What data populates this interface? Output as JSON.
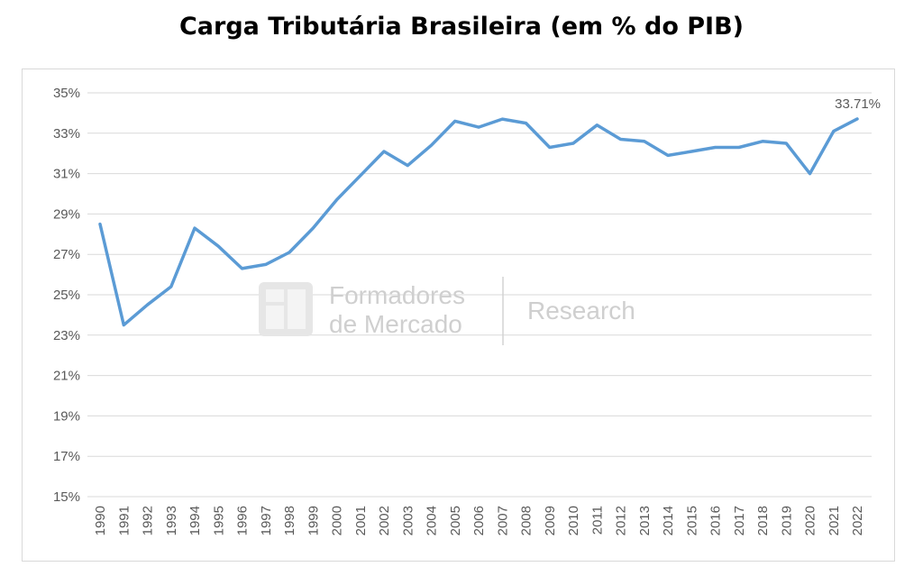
{
  "chart_data": {
    "type": "line",
    "title": "Carga Tributária Brasileira (em % do PIB)",
    "xlabel": "",
    "ylabel": "",
    "x": [
      "1990",
      "1991",
      "1992",
      "1993",
      "1994",
      "1995",
      "1996",
      "1997",
      "1998",
      "1999",
      "2000",
      "2001",
      "2002",
      "2003",
      "2004",
      "2005",
      "2006",
      "2007",
      "2008",
      "2009",
      "2010",
      "2011",
      "2012",
      "2013",
      "2014",
      "2015",
      "2016",
      "2017",
      "2018",
      "2019",
      "2020",
      "2021",
      "2022"
    ],
    "series": [
      {
        "name": "",
        "values": [
          28.5,
          23.5,
          24.5,
          25.4,
          28.3,
          27.4,
          26.3,
          26.5,
          27.1,
          28.3,
          29.7,
          30.9,
          32.1,
          31.4,
          32.4,
          33.6,
          33.3,
          33.7,
          33.5,
          32.3,
          32.5,
          33.4,
          32.7,
          32.6,
          31.9,
          32.1,
          32.3,
          32.3,
          32.6,
          32.5,
          31.0,
          33.1,
          33.71
        ],
        "color": "#5b9bd5"
      }
    ],
    "ylim": [
      15,
      35
    ],
    "yticks": [
      15,
      17,
      19,
      21,
      23,
      25,
      27,
      29,
      31,
      33,
      35
    ],
    "ytick_labels": [
      "15%",
      "17%",
      "19%",
      "21%",
      "23%",
      "25%",
      "27%",
      "29%",
      "31%",
      "33%",
      "35%"
    ],
    "grid": true,
    "legend": "none",
    "annotations": [
      {
        "x": "2022",
        "text": "33.71%"
      }
    ]
  },
  "watermark": {
    "line1": "Formadores",
    "line2": "de Mercado",
    "tag": "Research"
  }
}
